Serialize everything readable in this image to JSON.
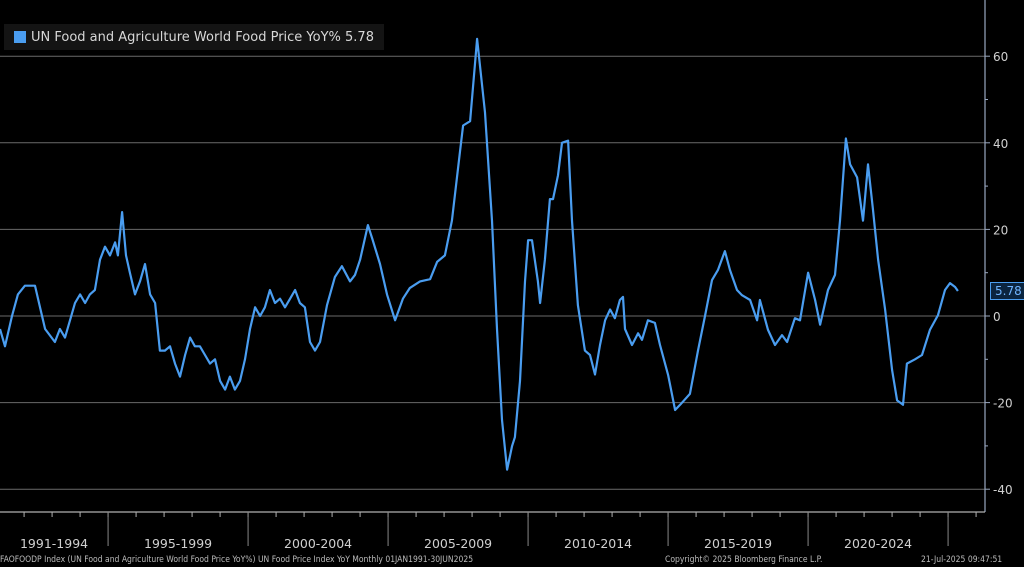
{
  "legend": {
    "label": "UN Food and Agriculture World Food Price YoY% 5.78",
    "color": "#4a9df0"
  },
  "last_value_label": "5.78",
  "footer": {
    "source": "FAOFOODP Index (UN Food and Agriculture World Food Price YoY%) UN Food Price Index YoY  Monthly 01JAN1991-30JUN2025",
    "copyright": "Copyright© 2025 Bloomberg Finance L.P.",
    "timestamp": "21-Jul-2025 09:47:51"
  },
  "chart_data": {
    "type": "line",
    "title": "",
    "xlabel": "",
    "ylabel": "",
    "ylim": [
      -45,
      70
    ],
    "xlim": [
      1991.0,
      2026.3
    ],
    "y_ticks": [
      60,
      40,
      20,
      0,
      -20,
      -40
    ],
    "x_tick_labels": [
      "1991-1994",
      "1995-1999",
      "2000-2004",
      "2005-2009",
      "2010-2014",
      "2015-2019",
      "2020-2024"
    ],
    "x_tick_starts": [
      1991,
      1995,
      2000,
      2005,
      2010,
      2015,
      2020,
      2025
    ],
    "grid": true,
    "legend_position": "top-left",
    "series": [
      {
        "name": "UN Food and Agriculture World Food Price YoY%",
        "color": "#4a9df0",
        "last": 5.78,
        "x": [
          1991.14,
          1991.32,
          1991.57,
          1991.78,
          1992.03,
          1992.39,
          1992.57,
          1992.75,
          1993.1,
          1993.28,
          1993.46,
          1993.82,
          1994.0,
          1994.18,
          1994.35,
          1994.53,
          1994.71,
          1994.89,
          1995.07,
          1995.25,
          1995.35,
          1995.5,
          1995.64,
          1995.78,
          1995.96,
          1996.14,
          1996.32,
          1996.5,
          1996.68,
          1996.85,
          1997.03,
          1997.21,
          1997.39,
          1997.57,
          1997.75,
          1997.93,
          1998.1,
          1998.28,
          1998.46,
          1998.64,
          1998.82,
          1999.0,
          1999.18,
          1999.35,
          1999.53,
          1999.71,
          1999.89,
          2000.07,
          2000.25,
          2000.43,
          2000.6,
          2000.78,
          2000.96,
          2001.14,
          2001.32,
          2001.5,
          2001.68,
          2001.85,
          2002.03,
          2002.21,
          2002.39,
          2002.57,
          2002.82,
          2003.1,
          2003.35,
          2003.64,
          2003.82,
          2004.0,
          2004.28,
          2004.43,
          2004.71,
          2004.96,
          2005.25,
          2005.53,
          2005.78,
          2006.14,
          2006.5,
          2006.75,
          2007.03,
          2007.28,
          2007.57,
          2007.68,
          2007.93,
          2008.18,
          2008.46,
          2008.71,
          2008.89,
          2009.07,
          2009.25,
          2009.43,
          2009.53,
          2009.71,
          2009.89,
          2010.0,
          2010.14,
          2010.35,
          2010.43,
          2010.6,
          2010.78,
          2010.89,
          2011.07,
          2011.21,
          2011.43,
          2011.57,
          2011.78,
          2012.03,
          2012.21,
          2012.39,
          2012.57,
          2012.75,
          2012.93,
          2013.1,
          2013.28,
          2013.39,
          2013.46,
          2013.71,
          2013.93,
          2014.07,
          2014.28,
          2014.53,
          2014.71,
          2015.0,
          2015.25,
          2015.43,
          2015.78,
          2016.07,
          2016.32,
          2016.57,
          2016.78,
          2017.03,
          2017.21,
          2017.46,
          2017.64,
          2017.93,
          2018.18,
          2018.28,
          2018.57,
          2018.82,
          2019.07,
          2019.25,
          2019.53,
          2019.71,
          2020.0,
          2020.25,
          2020.43,
          2020.71,
          2020.96,
          2021.14,
          2021.35,
          2021.5,
          2021.75,
          2021.96,
          2022.14,
          2022.32,
          2022.5,
          2022.75,
          2023.0,
          2023.18,
          2023.39,
          2023.53,
          2023.82,
          2024.07,
          2024.35,
          2024.64,
          2024.89,
          2025.07,
          2025.25,
          2025.35
        ],
        "y": [
          -3,
          -7,
          0,
          5,
          7,
          7,
          2,
          -3,
          -6,
          -3,
          -5,
          3,
          5,
          3,
          5,
          6,
          13,
          16,
          14,
          17,
          14,
          24,
          14,
          10,
          5,
          8,
          12,
          5,
          3,
          -8,
          -8,
          -7,
          -11,
          -14,
          -9,
          -5,
          -7,
          -7,
          -9,
          -11,
          -10,
          -15,
          -17,
          -14,
          -17,
          -15,
          -10,
          -3,
          2,
          0,
          2,
          6,
          3,
          4,
          2,
          4,
          6,
          3,
          2,
          -6,
          -8,
          -6,
          2.5,
          9,
          11.5,
          8,
          9.5,
          13,
          21,
          18,
          12,
          5,
          -1,
          4,
          6.5,
          8,
          8.5,
          12.5,
          14,
          22,
          38,
          44,
          45,
          64,
          47,
          22,
          -3,
          -24,
          -35.5,
          -30,
          -28,
          -15,
          8,
          17.5,
          17.5,
          8,
          3,
          13,
          27,
          27,
          32.5,
          40,
          40.5,
          22,
          2.5,
          -8,
          -9,
          -13.5,
          -6.7,
          -1,
          1.5,
          -0.5,
          3.7,
          4.4,
          -3,
          -6.7,
          -4,
          -5.5,
          -1,
          -1.6,
          -6.7,
          -13.6,
          -21.7,
          -20.5,
          -18,
          -8,
          0,
          8.3,
          10.6,
          15,
          10.6,
          6,
          4.8,
          3.7,
          -1,
          3.7,
          -3.2,
          -6.7,
          -4.4,
          -6,
          -0.5,
          -1,
          10,
          3.7,
          -2,
          6,
          9.5,
          22,
          41,
          35,
          32,
          22,
          35,
          24.5,
          13,
          1.5,
          -12.5,
          -19.5,
          -20.5,
          -11,
          -10,
          -9,
          -3.2,
          0.2,
          6,
          7.6,
          6.7,
          5.78
        ]
      }
    ]
  }
}
